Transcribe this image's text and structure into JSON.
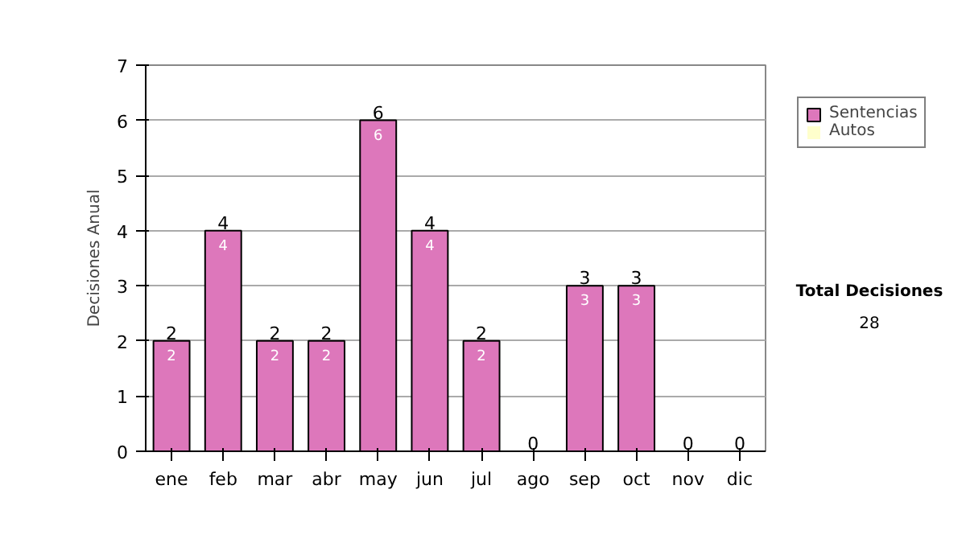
{
  "chart_data": {
    "type": "bar",
    "stacked": true,
    "ylabel": "Decisiones Anual",
    "categories": [
      "ene",
      "feb",
      "mar",
      "abr",
      "may",
      "jun",
      "jul",
      "ago",
      "sep",
      "oct",
      "nov",
      "dic"
    ],
    "series": [
      {
        "name": "Sentencias",
        "color": "#dd77bb",
        "values": [
          2,
          4,
          2,
          2,
          6,
          4,
          2,
          0,
          3,
          3,
          0,
          0
        ],
        "value_labels": [
          "2",
          "4",
          "2",
          "2",
          "6",
          "4",
          "2",
          null,
          "3",
          "3",
          null,
          null
        ]
      },
      {
        "name": "Autos",
        "color": "#ffffcc",
        "values": [
          0,
          0,
          0,
          0,
          0,
          0,
          0,
          0,
          0,
          0,
          0,
          0
        ]
      }
    ],
    "totals": [
      "2",
      "4",
      "2",
      "2",
      "6",
      "4",
      "2",
      "0",
      "3",
      "3",
      "0",
      "0"
    ],
    "ylim": [
      0,
      7
    ],
    "yticks": [
      0,
      1,
      2,
      3,
      4,
      5,
      6,
      7
    ],
    "grid": "y",
    "legend": "right",
    "annotations": [
      "Total Decisiones",
      "28"
    ]
  }
}
